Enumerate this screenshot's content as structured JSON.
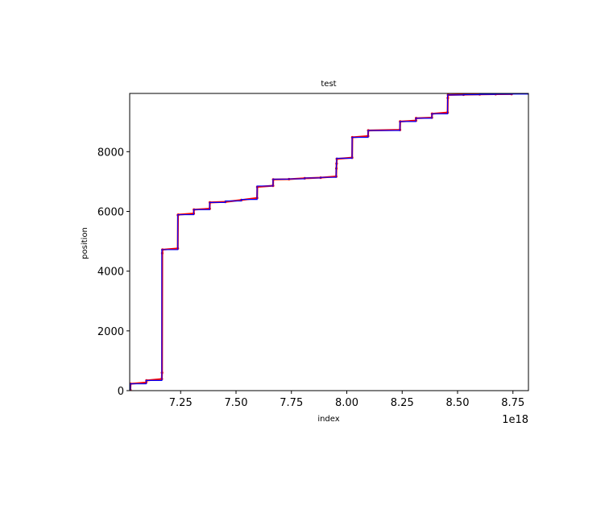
{
  "chart_data": {
    "type": "line",
    "title": "test",
    "xlabel": "index",
    "ylabel": "position",
    "x_offset_label": "1e18",
    "xlim": [
      7.02,
      8.82
    ],
    "ylim": [
      0,
      9950
    ],
    "x_ticks": [
      7.25,
      7.5,
      7.75,
      8.0,
      8.25,
      8.5,
      8.75
    ],
    "x_tick_labels": [
      "7.25",
      "7.50",
      "7.75",
      "8.00",
      "8.25",
      "8.50",
      "8.75"
    ],
    "y_ticks": [
      0,
      2000,
      4000,
      6000,
      8000
    ],
    "y_tick_labels": [
      "0",
      "2000",
      "4000",
      "6000",
      "8000"
    ],
    "grid": false,
    "series": [
      {
        "color": "#ff0000",
        "style": "dots",
        "x": [
          7.023,
          7.024,
          7.094,
          7.096,
          7.165,
          7.166,
          7.167,
          7.168,
          7.237,
          7.238,
          7.239,
          7.309,
          7.31,
          7.381,
          7.382,
          7.452,
          7.524,
          7.595,
          7.596,
          7.667,
          7.668,
          7.739,
          7.81,
          7.882,
          7.952,
          7.953,
          7.954,
          7.955,
          8.024,
          8.025,
          8.096,
          8.097,
          8.24,
          8.241,
          8.312,
          8.313,
          8.384,
          8.385,
          8.455,
          8.456,
          8.457,
          8.527,
          8.6,
          8.672,
          8.744
        ],
        "y": [
          20,
          230,
          270,
          340,
          390,
          600,
          4600,
          4720,
          4760,
          5880,
          5890,
          5930,
          6060,
          6090,
          6300,
          6320,
          6380,
          6450,
          6820,
          6860,
          7070,
          7080,
          7110,
          7130,
          7170,
          7440,
          7600,
          7760,
          7800,
          8480,
          8520,
          8710,
          8730,
          9010,
          9040,
          9120,
          9140,
          9270,
          9310,
          9800,
          9900,
          9910,
          9920,
          9925,
          9930
        ]
      },
      {
        "color": "#0000ff",
        "style": "steps-post",
        "x": [
          7.023,
          7.094,
          7.165,
          7.237,
          7.309,
          7.381,
          7.452,
          7.524,
          7.595,
          7.667,
          7.739,
          7.81,
          7.882,
          7.952,
          7.953,
          7.954,
          8.024,
          8.096,
          8.24,
          8.312,
          8.384,
          8.455,
          8.527,
          8.6,
          8.672,
          8.744
        ],
        "y": [
          230,
          340,
          4720,
          5890,
          6060,
          6300,
          6350,
          6400,
          6850,
          7080,
          7090,
          7120,
          7140,
          7440,
          7600,
          7780,
          8480,
          8710,
          9010,
          9120,
          9270,
          9900,
          9910,
          9920,
          9925,
          9930
        ]
      }
    ]
  }
}
